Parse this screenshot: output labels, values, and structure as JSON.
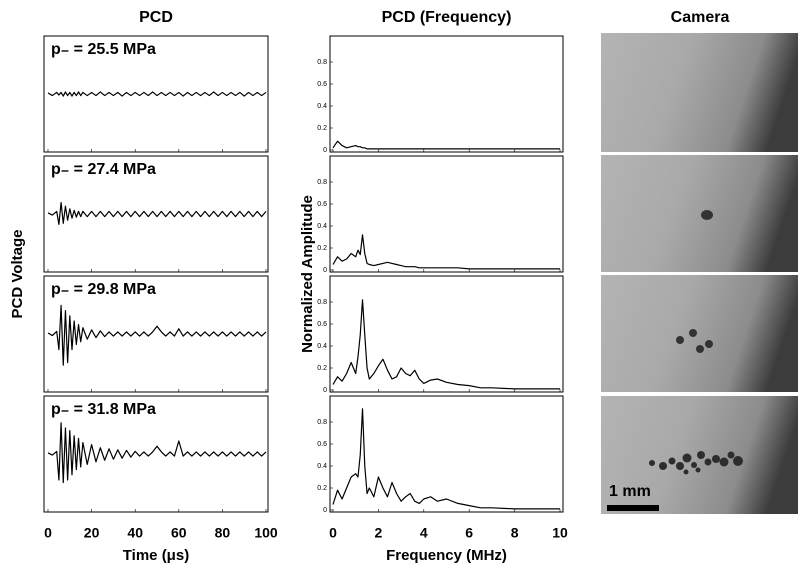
{
  "chart_data": [
    {
      "type": "line",
      "title": "PCD",
      "y_label": "PCD Voltage",
      "x_label": "Time (μs)",
      "xlim": [
        0,
        100
      ],
      "xticks": [
        0,
        20,
        40,
        60,
        80,
        100
      ],
      "ylim": [
        -1,
        1
      ],
      "color": "#000000",
      "x": [
        0,
        2,
        4,
        5,
        6,
        7,
        8,
        9,
        10,
        11,
        12,
        13,
        14,
        15,
        16,
        18,
        20,
        22,
        24,
        26,
        28,
        30,
        32,
        34,
        36,
        38,
        40,
        42,
        44,
        46,
        48,
        50,
        52,
        54,
        56,
        58,
        60,
        62,
        64,
        66,
        68,
        70,
        72,
        74,
        76,
        78,
        80,
        82,
        84,
        86,
        88,
        90,
        92,
        94,
        96,
        98,
        100
      ],
      "panels": [
        {
          "annotation": "p₋ = 25.5 MPa",
          "values": [
            0.02,
            -0.03,
            0.03,
            -0.02,
            0.03,
            -0.04,
            0.04,
            -0.03,
            0.03,
            -0.04,
            0.03,
            -0.03,
            0.04,
            -0.03,
            0.03,
            -0.03,
            0.03,
            -0.03,
            0.04,
            -0.03,
            0.03,
            -0.03,
            0.03,
            -0.04,
            0.03,
            -0.03,
            0.03,
            -0.03,
            0.03,
            -0.03,
            0.04,
            -0.03,
            0.03,
            -0.03,
            0.03,
            -0.03,
            0.03,
            -0.04,
            0.03,
            -0.03,
            0.03,
            -0.03,
            0.03,
            -0.03,
            0.04,
            -0.03,
            0.03,
            -0.03,
            0.03,
            -0.03,
            0.03,
            -0.04,
            0.03,
            -0.03,
            0.03,
            -0.03,
            0.03
          ]
        },
        {
          "annotation": "p₋ = 27.4 MPa",
          "values": [
            0.02,
            -0.02,
            0.05,
            -0.2,
            0.22,
            -0.18,
            0.15,
            -0.12,
            0.1,
            -0.08,
            0.07,
            -0.06,
            0.05,
            -0.05,
            0.05,
            -0.05,
            0.05,
            -0.05,
            0.05,
            -0.05,
            0.05,
            -0.05,
            0.05,
            -0.05,
            0.05,
            -0.05,
            0.05,
            -0.05,
            0.05,
            -0.05,
            0.05,
            -0.05,
            0.05,
            -0.05,
            0.05,
            -0.05,
            0.05,
            -0.05,
            0.05,
            -0.05,
            0.05,
            -0.05,
            0.05,
            -0.05,
            0.05,
            -0.05,
            0.05,
            -0.05,
            0.05,
            -0.05,
            0.05,
            -0.05,
            0.05,
            -0.05,
            0.05,
            -0.05,
            0.05
          ]
        },
        {
          "annotation": "p₋ = 29.8 MPa",
          "values": [
            0.02,
            -0.03,
            0.05,
            -0.3,
            0.55,
            -0.6,
            0.45,
            -0.55,
            0.35,
            -0.3,
            0.25,
            -0.2,
            0.18,
            -0.15,
            0.12,
            -0.1,
            0.08,
            -0.07,
            0.06,
            -0.05,
            0.04,
            -0.04,
            0.04,
            -0.04,
            0.04,
            -0.04,
            0.04,
            -0.04,
            0.04,
            -0.04,
            0.04,
            0.15,
            0.04,
            -0.04,
            0.04,
            -0.04,
            0.1,
            -0.04,
            0.04,
            -0.04,
            0.04,
            -0.04,
            0.04,
            -0.04,
            0.04,
            -0.04,
            0.04,
            -0.04,
            0.04,
            -0.04,
            0.04,
            -0.04,
            0.04,
            -0.04,
            0.04,
            -0.04,
            0.04
          ]
        },
        {
          "annotation": "p₋ = 31.8 MPa",
          "values": [
            0.02,
            -0.02,
            0.05,
            -0.5,
            0.6,
            -0.55,
            0.5,
            -0.5,
            0.45,
            -0.4,
            0.35,
            -0.3,
            0.3,
            -0.25,
            0.22,
            -0.2,
            0.18,
            -0.15,
            0.12,
            -0.12,
            0.1,
            -0.1,
            0.08,
            -0.08,
            0.07,
            -0.06,
            0.05,
            -0.04,
            0.04,
            -0.04,
            0.04,
            0.15,
            0.04,
            -0.04,
            0.04,
            -0.04,
            0.25,
            -0.04,
            0.04,
            -0.04,
            0.04,
            -0.04,
            0.04,
            -0.04,
            0.04,
            -0.04,
            0.04,
            -0.04,
            0.04,
            -0.04,
            0.04,
            -0.04,
            0.04,
            -0.04,
            0.04,
            -0.04,
            0.04
          ]
        }
      ]
    },
    {
      "type": "line",
      "title": "PCD (Frequency)",
      "y_label": "Normalized Amplitude",
      "x_label": "Frequency (MHz)",
      "xlim": [
        0,
        10
      ],
      "xticks": [
        0,
        2,
        4,
        6,
        8,
        10
      ],
      "ylim": [
        0,
        1
      ],
      "yticks": [
        0,
        0.2,
        0.4,
        0.6,
        0.8
      ],
      "color": "#000000",
      "x": [
        0,
        0.2,
        0.4,
        0.6,
        0.8,
        1,
        1.1,
        1.2,
        1.3,
        1.4,
        1.5,
        1.6,
        1.8,
        2,
        2.2,
        2.4,
        2.6,
        2.8,
        3,
        3.2,
        3.4,
        3.6,
        3.8,
        4,
        4.3,
        4.6,
        5,
        5.5,
        6,
        6.5,
        7,
        8,
        9,
        10
      ],
      "panels": [
        {
          "values": [
            0.02,
            0.08,
            0.04,
            0.02,
            0.03,
            0.04,
            0.03,
            0.03,
            0.02,
            0.02,
            0.01,
            0.01,
            0.01,
            0.01,
            0.01,
            0.01,
            0.01,
            0.01,
            0.01,
            0.01,
            0.01,
            0.01,
            0.01,
            0.01,
            0.01,
            0.01,
            0.01,
            0.01,
            0.01,
            0.01,
            0.01,
            0.01,
            0.01,
            0.01
          ]
        },
        {
          "values": [
            0.05,
            0.12,
            0.08,
            0.1,
            0.15,
            0.12,
            0.18,
            0.14,
            0.32,
            0.15,
            0.06,
            0.05,
            0.04,
            0.05,
            0.06,
            0.07,
            0.06,
            0.05,
            0.04,
            0.03,
            0.03,
            0.03,
            0.02,
            0.02,
            0.02,
            0.02,
            0.02,
            0.02,
            0.01,
            0.01,
            0.01,
            0.01,
            0.01,
            0.01
          ]
        },
        {
          "values": [
            0.05,
            0.12,
            0.08,
            0.15,
            0.25,
            0.15,
            0.3,
            0.5,
            0.82,
            0.5,
            0.2,
            0.1,
            0.15,
            0.22,
            0.28,
            0.18,
            0.1,
            0.12,
            0.2,
            0.15,
            0.13,
            0.18,
            0.1,
            0.06,
            0.09,
            0.1,
            0.07,
            0.05,
            0.04,
            0.02,
            0.02,
            0.01,
            0.01,
            0.01
          ]
        },
        {
          "values": [
            0.05,
            0.18,
            0.1,
            0.2,
            0.3,
            0.33,
            0.3,
            0.5,
            0.92,
            0.4,
            0.15,
            0.2,
            0.12,
            0.3,
            0.2,
            0.12,
            0.25,
            0.15,
            0.08,
            0.12,
            0.15,
            0.08,
            0.06,
            0.1,
            0.12,
            0.08,
            0.1,
            0.06,
            0.04,
            0.02,
            0.02,
            0.01,
            0.01,
            0.01
          ]
        }
      ]
    },
    {
      "type": "image",
      "title": "Camera",
      "scale_bar": "1 mm"
    }
  ]
}
